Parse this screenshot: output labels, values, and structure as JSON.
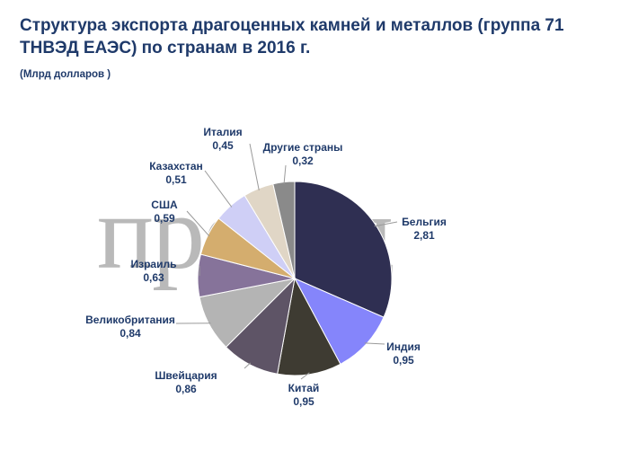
{
  "header": {
    "title": "Структура  экспорта драгоценных камней и металлов (группа 71 ТНВЭД ЕАЭС) по странам в 2016 г.",
    "subtitle": "(Млрд долларов )"
  },
  "watermark": {
    "text": "провэд"
  },
  "chart_data": {
    "type": "pie",
    "title": "Структура  экспорта драгоценных камней и металлов (группа 71 ТНВЭД ЕАЭС) по странам в 2016 г.",
    "unit": "(Млрд долларов )",
    "slices": [
      {
        "label": "Бельгия",
        "value": 2.81,
        "value_text": "2,81",
        "color": "#2f2f52"
      },
      {
        "label": "Индия",
        "value": 0.95,
        "value_text": "0,95",
        "color": "#8585fb"
      },
      {
        "label": "Китай",
        "value": 0.95,
        "value_text": "0,95",
        "color": "#3e3b32"
      },
      {
        "label": "Швейцария",
        "value": 0.86,
        "value_text": "0,86",
        "color": "#5e5466"
      },
      {
        "label": "Великобритания",
        "value": 0.84,
        "value_text": "0,84",
        "color": "#b4b4b4"
      },
      {
        "label": "Израиль",
        "value": 0.63,
        "value_text": "0,63",
        "color": "#86739a"
      },
      {
        "label": "США",
        "value": 0.59,
        "value_text": "0,59",
        "color": "#d4ad6e"
      },
      {
        "label": "Казахстан",
        "value": 0.51,
        "value_text": "0,51",
        "color": "#cfcff6"
      },
      {
        "label": "Италия",
        "value": 0.45,
        "value_text": "0,45",
        "color": "#e0d6c6"
      },
      {
        "label": "Другие страны",
        "value": 0.32,
        "value_text": "0,32",
        "color": "#8a8a8a"
      }
    ]
  }
}
